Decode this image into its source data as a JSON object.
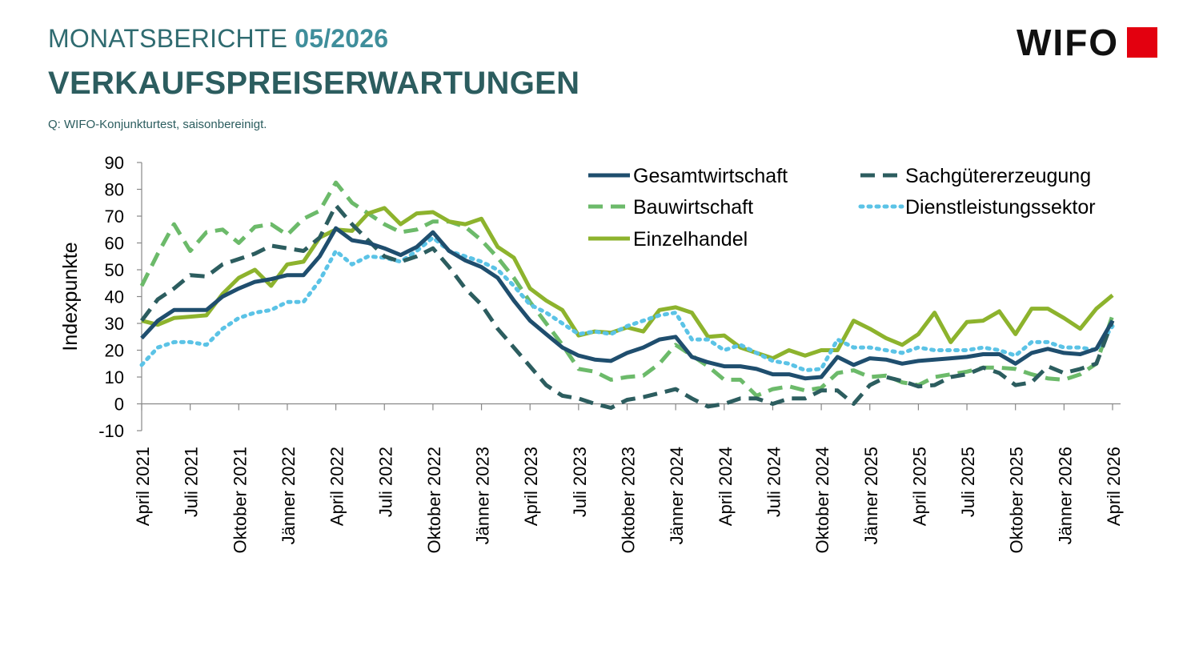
{
  "header": {
    "kicker_text": "MONATSBERICHTE",
    "kicker_issue": "05/2026",
    "title": "VERKAUFSPREISERWARTUNGEN",
    "source": "Q: WIFO-Konjunkturtest, saisonbereinigt.",
    "logo_text": "WIFO",
    "logo_color": "#e3000f"
  },
  "chart_data": {
    "type": "line",
    "title": "VERKAUFSPREISERWARTUNGEN",
    "ylabel": "Indexpunkte",
    "xlabel": "",
    "ylim": [
      -10,
      90
    ],
    "yticks": [
      -10,
      0,
      10,
      20,
      30,
      40,
      50,
      60,
      70,
      80,
      90
    ],
    "grid": false,
    "legend_position": "top-right",
    "start": "April 2021",
    "x_tick_labels": [
      "April 2021",
      "Juli 2021",
      "Oktober 2021",
      "Jänner 2022",
      "April 2022",
      "Juli 2022",
      "Oktober 2022",
      "Jänner 2023",
      "April 2023",
      "Juli 2023",
      "Oktober 2023",
      "Jänner 2024",
      "April 2024",
      "Juli 2024",
      "Oktober 2024",
      "Jänner 2025",
      "April 2025",
      "Juli 2025",
      "Oktober 2025",
      "Jänner 2026",
      "April 2026"
    ],
    "x": [
      "April 2021",
      "Mai 2021",
      "Juni 2021",
      "Juli 2021",
      "August 2021",
      "September 2021",
      "Oktober 2021",
      "November 2021",
      "Dezember 2021",
      "Jänner 2022",
      "Februar 2022",
      "März 2022",
      "April 2022",
      "Mai 2022",
      "Juni 2022",
      "Juli 2022",
      "August 2022",
      "September 2022",
      "Oktober 2022",
      "November 2022",
      "Dezember 2022",
      "Jänner 2023",
      "Februar 2023",
      "März 2023",
      "April 2023",
      "Mai 2023",
      "Juni 2023",
      "Juli 2023",
      "August 2023",
      "September 2023",
      "Oktober 2023",
      "November 2023",
      "Dezember 2023",
      "Jänner 2024",
      "Februar 2024",
      "März 2024",
      "April 2024",
      "Mai 2024",
      "Juni 2024",
      "Juli 2024",
      "August 2024",
      "September 2024",
      "Oktober 2024",
      "November 2024",
      "Dezember 2024",
      "Jänner 2025",
      "Februar 2025",
      "März 2025",
      "April 2025",
      "Mai 2025",
      "Juni 2025",
      "Juli 2025",
      "August 2025",
      "September 2025",
      "Oktober 2025",
      "November 2025",
      "Dezember 2025",
      "Jänner 2026",
      "Februar 2026",
      "März 2026",
      "April 2026"
    ],
    "series": [
      {
        "name": "Gesamtwirtschaft",
        "color": "#1f4e6e",
        "dash": "solid",
        "values": [
          24.5,
          31,
          35,
          35,
          35,
          40,
          43,
          45.5,
          46.5,
          48,
          48,
          55,
          65.5,
          61,
          60,
          58,
          55.5,
          58.5,
          64,
          57,
          53.5,
          51,
          47,
          38.5,
          31,
          26,
          21,
          18,
          16.5,
          16,
          19,
          21,
          24,
          25,
          17.5,
          15.5,
          14,
          14,
          13,
          11,
          11,
          9.5,
          10,
          17.5,
          14.5,
          17,
          16.5,
          15,
          16,
          16.5,
          17,
          17.5,
          18.5,
          18.5,
          15,
          19,
          20.5,
          19,
          18.5,
          20.5,
          31
        ]
      },
      {
        "name": "Sachgütererzeugung",
        "color": "#2c5d5f",
        "dash": "dash",
        "values": [
          31,
          39,
          43,
          48,
          47.5,
          52,
          54,
          56,
          59,
          58,
          57,
          62,
          74,
          67,
          61,
          55,
          53,
          55,
          58,
          51,
          43,
          37,
          28,
          21,
          14,
          7,
          3,
          2,
          0,
          -1.5,
          1.5,
          2.5,
          4,
          5.5,
          2,
          -1,
          0,
          2,
          2,
          0,
          2,
          2,
          5,
          5,
          0,
          7,
          10,
          8.5,
          6.5,
          7,
          10,
          11,
          13.5,
          11.5,
          7,
          8,
          14,
          11.5,
          13,
          15,
          31
        ]
      },
      {
        "name": "Bauwirtschaft",
        "color": "#6cba6a",
        "dash": "dash",
        "values": [
          44,
          56,
          67,
          57,
          64,
          65,
          60,
          66,
          67,
          63,
          69,
          72,
          82.5,
          75,
          71,
          67,
          64,
          65,
          68,
          68,
          66,
          61,
          54.5,
          47,
          38,
          30,
          22,
          13,
          12,
          9,
          10,
          10.5,
          15,
          22,
          18,
          14,
          9,
          9,
          3,
          5.5,
          6.5,
          5,
          6,
          11.5,
          12.5,
          10,
          10.5,
          8,
          7,
          10,
          11,
          12,
          13.5,
          13.5,
          13,
          11,
          9.5,
          9,
          11,
          15,
          33
        ]
      },
      {
        "name": "Dienstleistungssektor",
        "color": "#5bc3e6",
        "dash": "dot",
        "values": [
          14.5,
          21,
          23,
          23,
          22,
          28,
          32,
          34,
          35,
          38,
          38,
          46,
          57,
          52,
          55,
          54.5,
          53,
          57,
          62,
          57,
          55,
          53,
          50,
          44,
          37,
          34,
          30,
          26,
          27,
          26,
          29,
          31,
          33,
          34,
          24,
          24,
          20,
          22,
          19,
          16,
          15,
          12.5,
          13,
          24,
          21,
          21,
          20,
          19,
          21,
          20,
          20,
          20,
          21,
          20,
          18,
          23,
          23,
          21,
          21,
          20,
          29
        ]
      },
      {
        "name": "Einzelhandel",
        "color": "#8db32d",
        "dash": "solid",
        "values": [
          31,
          29.5,
          32,
          32.5,
          33,
          41,
          47,
          50,
          44,
          52,
          53,
          62,
          65,
          64.5,
          71,
          73,
          67,
          71,
          71.5,
          68,
          67,
          69,
          58.5,
          54.5,
          43,
          38.5,
          35,
          25.5,
          27,
          26.5,
          28.5,
          27,
          35,
          36,
          34,
          25,
          25.5,
          21,
          19,
          17,
          20,
          18,
          20,
          20,
          31,
          28,
          24.5,
          22,
          26,
          34,
          23,
          30.5,
          31,
          34.5,
          26,
          35.5,
          35.5,
          32,
          28,
          35.5,
          40.5
        ]
      }
    ]
  }
}
